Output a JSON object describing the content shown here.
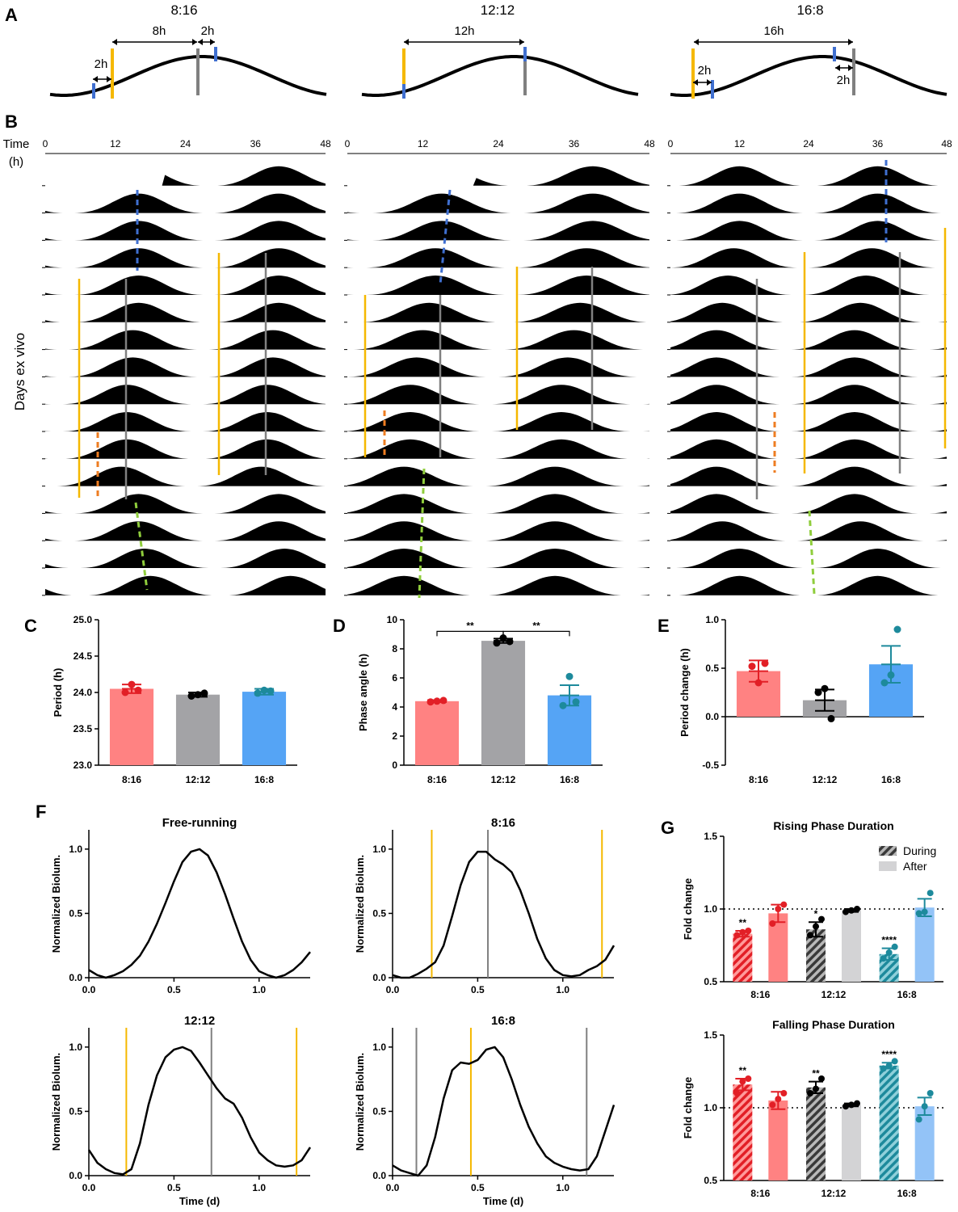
{
  "panel_letters": {
    "a": "A",
    "b": "B",
    "c": "C",
    "d": "D",
    "e": "E",
    "f": "F",
    "g": "G"
  },
  "colors": {
    "light_on": "#f5b800",
    "light_off": "#808080",
    "blue": "#3f6fd0",
    "red": "#e21f26",
    "gray": "#939396",
    "lightblue": "#55a4f5",
    "teal": "#1d8a9c",
    "green": "#8fcd3c",
    "orange": "#ee7d22",
    "pink": "#ff8282"
  },
  "panelA": {
    "conditions": [
      "8:16",
      "12:12",
      "16:8"
    ],
    "labels_8_16": [
      "2h",
      "8h",
      "2h"
    ],
    "labels_12_12": [
      "12h"
    ],
    "labels_16_8": [
      "16h",
      "2h",
      "2h"
    ]
  },
  "panelB": {
    "time_label": "Time",
    "time_unit": "(h)",
    "ylabel": "Days ex vivo",
    "ticks": [
      "0",
      "12",
      "24",
      "36",
      "48"
    ],
    "rows": 16
  },
  "chart_data": [
    {
      "id": "C",
      "type": "bar",
      "categories": [
        "8:16",
        "12:12",
        "16:8"
      ],
      "values": [
        24.05,
        23.97,
        24.01
      ],
      "errors": [
        0.06,
        0.03,
        0.04
      ],
      "points": [
        [
          24.0,
          24.11,
          24.03
        ],
        [
          23.95,
          23.97,
          23.99
        ],
        [
          23.99,
          24.03,
          24.02
        ]
      ],
      "ylabel": "Period (h)",
      "ylim": [
        23.0,
        25.0
      ],
      "yticks": [
        "23.0",
        "23.5",
        "24.0",
        "24.5",
        "25.0"
      ]
    },
    {
      "id": "D",
      "type": "bar",
      "categories": [
        "8:16",
        "12:12",
        "16:8"
      ],
      "values": [
        4.4,
        8.55,
        4.8
      ],
      "errors": [
        0.07,
        0.15,
        0.7
      ],
      "points": [
        [
          4.35,
          4.4,
          4.45
        ],
        [
          8.4,
          8.75,
          8.5
        ],
        [
          4.1,
          6.1,
          4.35
        ]
      ],
      "ylabel": "Phase angle (h)",
      "ylim": [
        0,
        10
      ],
      "yticks": [
        "0",
        "2",
        "4",
        "6",
        "8",
        "10"
      ],
      "significance": [
        "**",
        "**"
      ]
    },
    {
      "id": "E",
      "type": "bar",
      "categories": [
        "8:16",
        "12:12",
        "16:8"
      ],
      "values": [
        0.47,
        0.17,
        0.54
      ],
      "errors": [
        0.11,
        0.11,
        0.19
      ],
      "points": [
        [
          0.52,
          0.35,
          0.55
        ],
        [
          0.25,
          0.29,
          -0.02
        ],
        [
          0.35,
          0.43,
          0.9
        ]
      ],
      "ylabel": "Period change (h)",
      "ylim": [
        -0.5,
        1.0
      ],
      "yticks": [
        "-0.5",
        "0.0",
        "0.5",
        "1.0"
      ]
    },
    {
      "id": "F1",
      "type": "line",
      "title": "Free-running",
      "xlabel": "",
      "ylabel": "Normalized Biolum.",
      "xlim": [
        0,
        1.3
      ],
      "ylim": [
        0,
        1.15
      ],
      "xticks": [
        "0.0",
        "0.5",
        "1.0"
      ],
      "yticks": [
        "0.0",
        "0.5",
        "1.0"
      ],
      "light_on": [],
      "light_off": [],
      "x": [
        0,
        0.05,
        0.1,
        0.15,
        0.2,
        0.25,
        0.3,
        0.35,
        0.4,
        0.45,
        0.5,
        0.55,
        0.6,
        0.65,
        0.7,
        0.75,
        0.8,
        0.85,
        0.9,
        0.95,
        1.0,
        1.05,
        1.1,
        1.15,
        1.2,
        1.25,
        1.3
      ],
      "y": [
        0.06,
        0.02,
        0.0,
        0.02,
        0.05,
        0.1,
        0.17,
        0.28,
        0.42,
        0.58,
        0.75,
        0.9,
        0.98,
        1.0,
        0.95,
        0.82,
        0.65,
        0.46,
        0.28,
        0.14,
        0.05,
        0.02,
        0.0,
        0.02,
        0.06,
        0.12,
        0.2
      ]
    },
    {
      "id": "F2",
      "type": "line",
      "title": "8:16",
      "xlabel": "",
      "ylabel": "Normalized Biolum.",
      "xlim": [
        0,
        1.3
      ],
      "ylim": [
        0,
        1.15
      ],
      "xticks": [
        "0.0",
        "0.5",
        "1.0"
      ],
      "yticks": [
        "0.0",
        "0.5",
        "1.0"
      ],
      "light_on": [
        0.23,
        1.23
      ],
      "light_off": [
        0.56
      ],
      "x": [
        0,
        0.05,
        0.1,
        0.15,
        0.2,
        0.25,
        0.3,
        0.35,
        0.4,
        0.45,
        0.5,
        0.55,
        0.6,
        0.65,
        0.7,
        0.75,
        0.8,
        0.85,
        0.9,
        0.95,
        1.0,
        1.05,
        1.1,
        1.15,
        1.2,
        1.25,
        1.3
      ],
      "y": [
        0.02,
        0.0,
        0.0,
        0.03,
        0.07,
        0.12,
        0.25,
        0.48,
        0.72,
        0.9,
        0.98,
        0.98,
        0.92,
        0.88,
        0.82,
        0.68,
        0.5,
        0.3,
        0.15,
        0.06,
        0.02,
        0.01,
        0.02,
        0.06,
        0.09,
        0.14,
        0.25
      ]
    },
    {
      "id": "F3",
      "type": "line",
      "title": "12:12",
      "xlabel": "Time (d)",
      "ylabel": "Normalized Biolum.",
      "xlim": [
        0,
        1.3
      ],
      "ylim": [
        0,
        1.15
      ],
      "xticks": [
        "0.0",
        "0.5",
        "1.0"
      ],
      "yticks": [
        "0.0",
        "0.5",
        "1.0"
      ],
      "light_on": [
        0.22,
        1.22
      ],
      "light_off": [
        0.72
      ],
      "x": [
        0,
        0.05,
        0.1,
        0.15,
        0.2,
        0.25,
        0.3,
        0.35,
        0.4,
        0.45,
        0.5,
        0.55,
        0.6,
        0.65,
        0.7,
        0.75,
        0.8,
        0.85,
        0.9,
        0.95,
        1.0,
        1.05,
        1.1,
        1.15,
        1.2,
        1.25,
        1.3
      ],
      "y": [
        0.2,
        0.1,
        0.05,
        0.02,
        0.01,
        0.05,
        0.25,
        0.55,
        0.78,
        0.92,
        0.98,
        1.0,
        0.97,
        0.88,
        0.78,
        0.68,
        0.6,
        0.56,
        0.45,
        0.3,
        0.18,
        0.12,
        0.08,
        0.07,
        0.08,
        0.12,
        0.22
      ]
    },
    {
      "id": "F4",
      "type": "line",
      "title": "16:8",
      "xlabel": "Time (d)",
      "ylabel": "Normalized Biolum.",
      "xlim": [
        0,
        1.3
      ],
      "ylim": [
        0,
        1.15
      ],
      "xticks": [
        "0.0",
        "0.5",
        "1.0"
      ],
      "yticks": [
        "0.0",
        "0.5",
        "1.0"
      ],
      "light_on": [
        0.46
      ],
      "light_off": [
        0.14,
        1.14
      ],
      "x": [
        0,
        0.05,
        0.1,
        0.15,
        0.2,
        0.25,
        0.3,
        0.35,
        0.4,
        0.45,
        0.5,
        0.55,
        0.6,
        0.65,
        0.7,
        0.75,
        0.8,
        0.85,
        0.9,
        0.95,
        1.0,
        1.05,
        1.1,
        1.15,
        1.2,
        1.25,
        1.3
      ],
      "y": [
        0.08,
        0.04,
        0.02,
        0.0,
        0.08,
        0.3,
        0.6,
        0.82,
        0.88,
        0.87,
        0.9,
        0.98,
        1.0,
        0.92,
        0.75,
        0.55,
        0.38,
        0.25,
        0.15,
        0.1,
        0.07,
        0.05,
        0.04,
        0.05,
        0.15,
        0.35,
        0.55
      ]
    },
    {
      "id": "G1",
      "type": "bar",
      "title": "Rising Phase Duration",
      "ylabel": "Fold change",
      "ylim": [
        0.5,
        1.5
      ],
      "yticks": [
        "0.5",
        "1.0",
        "1.5"
      ],
      "categories": [
        "8:16",
        "12:12",
        "16:8"
      ],
      "legend": [
        "During",
        "After"
      ],
      "reference": 1.0,
      "series": [
        {
          "name": "During",
          "values": [
            0.83,
            0.86,
            0.69
          ],
          "errors": [
            0.02,
            0.05,
            0.04
          ],
          "significance": [
            "**",
            "*",
            "****"
          ],
          "points": [
            [
              0.82,
              0.84,
              0.85
            ],
            [
              0.82,
              0.88,
              0.93
            ],
            [
              0.66,
              0.7,
              0.74
            ]
          ]
        },
        {
          "name": "After",
          "values": [
            0.97,
            0.99,
            1.01
          ],
          "errors": [
            0.06,
            0.01,
            0.06
          ],
          "points": [
            [
              0.9,
              1.0,
              1.03
            ],
            [
              0.98,
              0.99,
              1.0
            ],
            [
              0.97,
              0.98,
              1.11
            ]
          ]
        }
      ]
    },
    {
      "id": "G2",
      "type": "bar",
      "title": "Falling Phase Duration",
      "ylabel": "Fold change",
      "ylim": [
        0.5,
        1.5
      ],
      "yticks": [
        "0.5",
        "1.0",
        "1.5"
      ],
      "categories": [
        "8:16",
        "12:12",
        "16:8"
      ],
      "reference": 1.0,
      "series": [
        {
          "name": "During",
          "values": [
            1.16,
            1.14,
            1.29
          ],
          "errors": [
            0.04,
            0.04,
            0.02
          ],
          "significance": [
            "**",
            "**",
            "****"
          ],
          "points": [
            [
              1.1,
              1.18,
              1.2
            ],
            [
              1.1,
              1.13,
              1.2
            ],
            [
              1.27,
              1.29,
              1.32
            ]
          ]
        },
        {
          "name": "After",
          "values": [
            1.05,
            1.02,
            1.01
          ],
          "errors": [
            0.06,
            0.01,
            0.06
          ],
          "points": [
            [
              1.02,
              1.06,
              1.1
            ],
            [
              1.01,
              1.02,
              1.03
            ],
            [
              0.92,
              1.01,
              1.1
            ]
          ]
        }
      ]
    }
  ]
}
